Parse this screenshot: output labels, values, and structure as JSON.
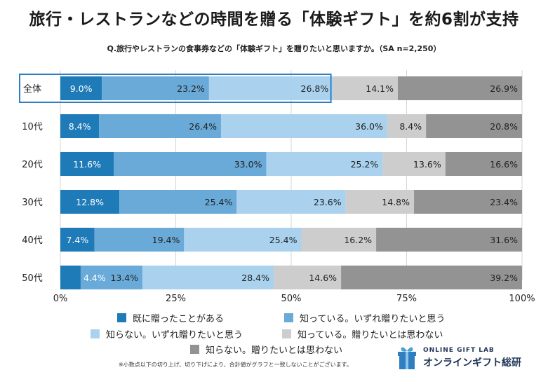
{
  "title": "旅行・レストランなどの時間を贈る「体験ギフト」を約6割が支持",
  "subtitle": "Q.旅行やレストランの食事券などの「体験ギフト」を贈りたいと思いますか。（SA n=2,250）",
  "chart_data": {
    "type": "bar",
    "orientation": "horizontal",
    "stacked": true,
    "categories": [
      "全体",
      "10代",
      "20代",
      "30代",
      "40代",
      "50代"
    ],
    "series": [
      {
        "name": "既に贈ったことがある",
        "color": "#1f7bb8",
        "values": [
          9.0,
          8.4,
          11.6,
          12.8,
          7.4,
          4.4
        ],
        "labels": [
          "9.0%",
          "8.4%",
          "11.6%",
          "12.8%",
          "7.4%",
          "4.4%"
        ]
      },
      {
        "name": "知っている。いずれ贈りたいと思う",
        "color": "#6aaad8",
        "values": [
          23.2,
          26.4,
          33.0,
          25.4,
          19.4,
          13.4
        ],
        "labels": [
          "23.2%",
          "26.4%",
          "33.0%",
          "25.4%",
          "19.4%",
          "13.4%"
        ]
      },
      {
        "name": "知らない。いずれ贈りたいと思う",
        "color": "#aad2ee",
        "values": [
          26.8,
          36.0,
          25.2,
          23.6,
          25.4,
          28.4
        ],
        "labels": [
          "26.8%",
          "36.0%",
          "25.2%",
          "23.6%",
          "25.4%",
          "28.4%"
        ]
      },
      {
        "name": "知っている。贈りたいとは思わない",
        "color": "#cdcdcd",
        "values": [
          14.1,
          8.4,
          13.6,
          14.8,
          16.2,
          14.6
        ],
        "labels": [
          "14.1%",
          "8.4%",
          "13.6%",
          "14.8%",
          "16.2%",
          "14.6%"
        ]
      },
      {
        "name": "知らない。贈りたいとは思わない",
        "color": "#939393",
        "values": [
          26.9,
          20.8,
          16.6,
          23.4,
          31.6,
          39.2
        ],
        "labels": [
          "26.9%",
          "20.8%",
          "16.6%",
          "23.4%",
          "31.6%",
          "39.2%"
        ]
      }
    ],
    "xlim": [
      0,
      100
    ],
    "xticks": [
      "0%",
      "25%",
      "50%",
      "75%",
      "100%"
    ],
    "grid": true,
    "legend_position": "bottom",
    "highlight_category": "全体"
  },
  "footnote": "※小数点以下の切り上げ、切り下げにより、合計値がグラフと一致しないことがございます。",
  "logo": {
    "name_en": "ONLINE GIFT LAB",
    "name_jp": "オンラインギフト総研",
    "icon": "gift-box-icon",
    "color": "#1f3556"
  }
}
